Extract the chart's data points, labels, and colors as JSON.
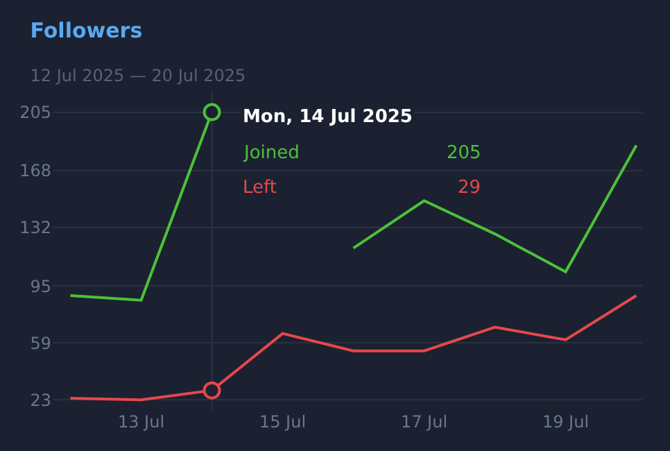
{
  "chart_data": {
    "type": "line",
    "title": "Followers",
    "subtitle": "12 Jul 2025 — 20 Jul 2025",
    "x": [
      "2025-07-12",
      "2025-07-13",
      "2025-07-14",
      "2025-07-15",
      "2025-07-16",
      "2025-07-17",
      "2025-07-18",
      "2025-07-19",
      "2025-07-20"
    ],
    "series": [
      {
        "name": "Joined",
        "color": "#4cc13a",
        "values": [
          89,
          86,
          205,
          null,
          119,
          149,
          128,
          104,
          184
        ]
      },
      {
        "name": "Left",
        "color": "#e5484d",
        "values": [
          24,
          23,
          29,
          65,
          54,
          54,
          69,
          61,
          89
        ]
      }
    ],
    "xlim": [
      "2025-07-11T18:00",
      "2025-07-20T02:00"
    ],
    "xticks": [
      {
        "value": "2025-07-13",
        "label": "13 Jul"
      },
      {
        "value": "2025-07-15",
        "label": "15 Jul"
      },
      {
        "value": "2025-07-17",
        "label": "17 Jul"
      },
      {
        "value": "2025-07-19",
        "label": "19 Jul"
      }
    ],
    "ylim": [
      17,
      218
    ],
    "yticks": [
      23,
      59,
      95,
      132,
      168,
      205
    ],
    "grid": "y",
    "legend": false,
    "marker": "none",
    "line_style": "solid",
    "ref_lines": [
      {
        "axis": "x",
        "value": "2025-07-14",
        "color": "#2c3443"
      }
    ],
    "annotations": [
      {
        "text": "Mon, 14 Jul 2025",
        "x": "2025-07-14",
        "y": 205
      },
      "205",
      "29"
    ]
  }
}
